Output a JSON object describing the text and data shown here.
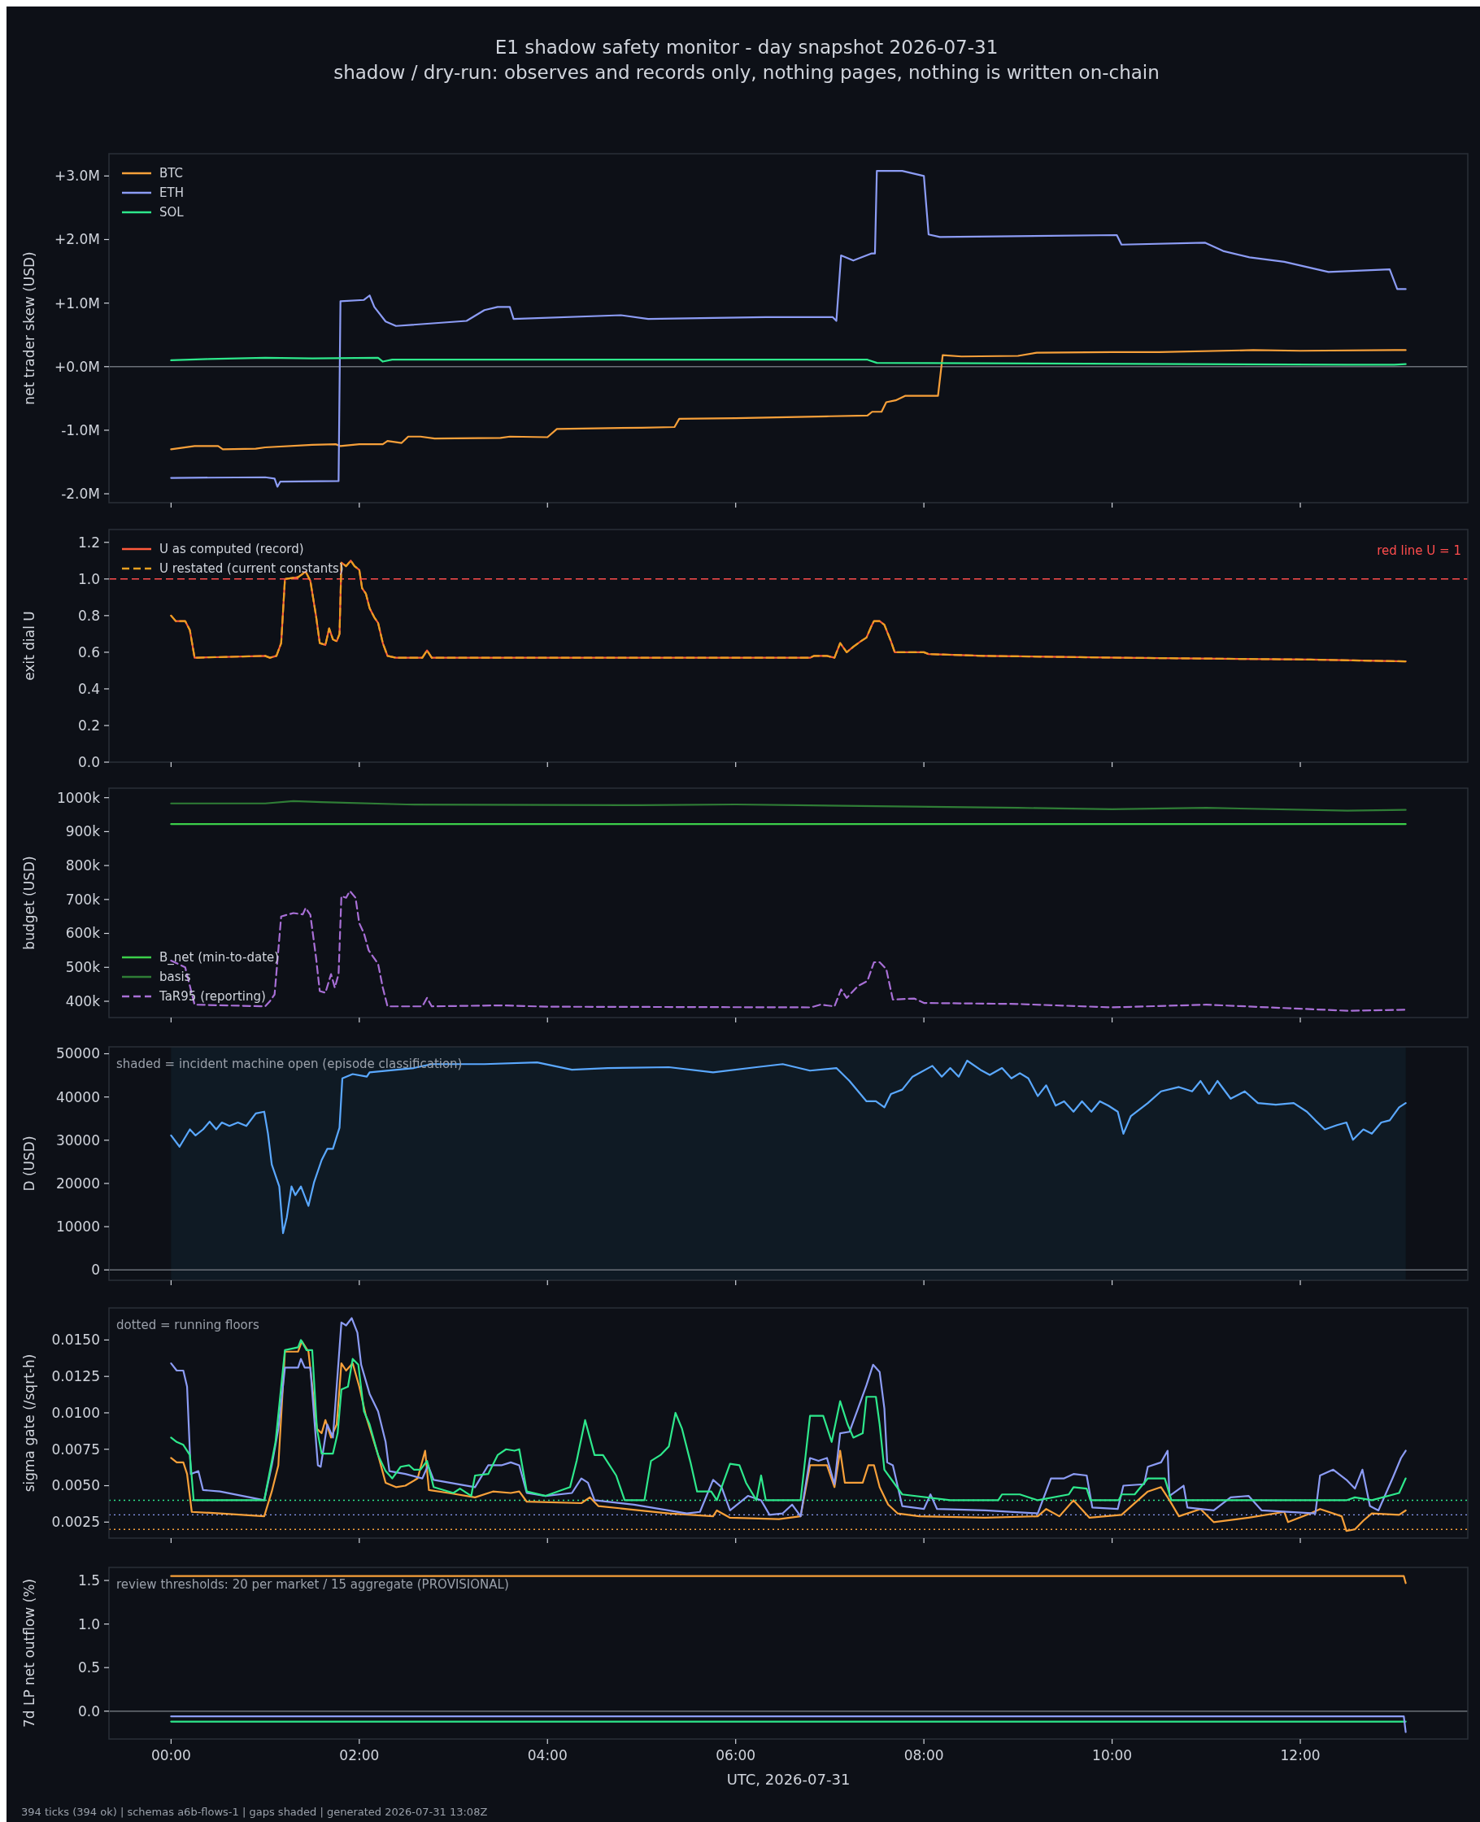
{
  "chart_data": [
    {
      "type": "line",
      "title": "E1 shadow safety monitor - day snapshot 2026-07-31",
      "subtitle": "shadow / dry-run: observes and records only, nothing pages, nothing is written on-chain",
      "ylabel": "net trader skew (USD)",
      "xlim": [
        -0.66,
        13.78
      ],
      "ylim": [
        -2.14,
        3.35
      ],
      "xticks": [
        {
          "value": 0,
          "label": null
        },
        {
          "value": 2,
          "label": null
        },
        {
          "value": 4,
          "label": null
        },
        {
          "value": 6,
          "label": null
        },
        {
          "value": 8,
          "label": null
        },
        {
          "value": 10,
          "label": null
        },
        {
          "value": 12,
          "label": null
        }
      ],
      "yticks": [
        {
          "value": -2,
          "label": "-2.0M"
        },
        {
          "value": -1,
          "label": "-1.0M"
        },
        {
          "value": 0,
          "label": "+0.0M"
        },
        {
          "value": 1,
          "label": "+1.0M"
        },
        {
          "value": 2,
          "label": "+2.0M"
        },
        {
          "value": 3,
          "label": "+3.0M"
        }
      ],
      "tick_labels": "y",
      "legend": "top left",
      "ref_lines": [
        {
          "axis": "y",
          "value": 0,
          "color": "#6b7078"
        }
      ],
      "series": [
        {
          "name": "BTC",
          "color": "#f7a03a",
          "x": [
            0,
            0.25,
            0.5,
            0.55,
            0.9,
            1.0,
            1.5,
            1.75,
            1.8,
            2.0,
            2.25,
            2.3,
            2.45,
            2.52,
            2.65,
            2.8,
            3.5,
            3.6,
            4.0,
            4.1,
            5.0,
            5.35,
            5.4,
            6.0,
            7.0,
            7.4,
            7.45,
            7.55,
            7.6,
            7.7,
            7.8,
            8.15,
            8.2,
            8.4,
            9.0,
            9.2,
            10.0,
            10.5,
            11.5,
            12.0,
            13.0,
            13.12
          ],
          "values": [
            -1.3,
            -1.25,
            -1.25,
            -1.3,
            -1.29,
            -1.27,
            -1.23,
            -1.22,
            -1.25,
            -1.22,
            -1.22,
            -1.17,
            -1.2,
            -1.1,
            -1.1,
            -1.13,
            -1.12,
            -1.1,
            -1.11,
            -0.98,
            -0.96,
            -0.95,
            -0.82,
            -0.81,
            -0.78,
            -0.77,
            -0.71,
            -0.71,
            -0.56,
            -0.53,
            -0.46,
            -0.46,
            0.18,
            0.16,
            0.17,
            0.22,
            0.23,
            0.23,
            0.26,
            0.25,
            0.26,
            0.26
          ]
        },
        {
          "name": "ETH",
          "color": "#8c9cf5",
          "x": [
            0,
            1.0,
            1.1,
            1.13,
            1.16,
            1.78,
            1.8,
            2.05,
            2.11,
            2.16,
            2.28,
            2.39,
            3.14,
            3.33,
            3.47,
            3.6,
            3.64,
            4.78,
            5.07,
            6.32,
            7.03,
            7.07,
            7.12,
            7.25,
            7.44,
            7.48,
            7.5,
            7.77,
            8.0,
            8.05,
            8.17,
            10.05,
            10.1,
            10.99,
            11.18,
            11.46,
            11.83,
            12.3,
            12.95,
            13.03,
            13.12
          ],
          "values": [
            -1.75,
            -1.74,
            -1.76,
            -1.89,
            -1.81,
            -1.8,
            1.03,
            1.05,
            1.12,
            0.94,
            0.71,
            0.64,
            0.72,
            0.89,
            0.94,
            0.94,
            0.75,
            0.81,
            0.75,
            0.78,
            0.78,
            0.72,
            1.75,
            1.67,
            1.78,
            1.78,
            3.08,
            3.08,
            3.0,
            2.08,
            2.04,
            2.07,
            1.92,
            1.95,
            1.82,
            1.72,
            1.65,
            1.49,
            1.53,
            1.22,
            1.22
          ]
        },
        {
          "name": "SOL",
          "color": "#2ee88c",
          "x": [
            0,
            0.4,
            1.0,
            1.5,
            2.2,
            2.25,
            2.35,
            7.4,
            7.5,
            9.2,
            12.5,
            13.0,
            13.12
          ],
          "values": [
            0.1,
            0.12,
            0.14,
            0.13,
            0.14,
            0.08,
            0.11,
            0.11,
            0.06,
            0.05,
            0.03,
            0.03,
            0.04
          ]
        }
      ]
    },
    {
      "type": "line",
      "ylabel": "exit dial U",
      "xlim": [
        -0.66,
        13.78
      ],
      "ylim": [
        0,
        1.27
      ],
      "xticks": [
        {
          "value": 0,
          "label": null
        },
        {
          "value": 2,
          "label": null
        },
        {
          "value": 4,
          "label": null
        },
        {
          "value": 6,
          "label": null
        },
        {
          "value": 8,
          "label": null
        },
        {
          "value": 10,
          "label": null
        },
        {
          "value": 12,
          "label": null
        }
      ],
      "yticks": [
        {
          "value": 0,
          "label": "0.0"
        },
        {
          "value": 0.2,
          "label": "0.2"
        },
        {
          "value": 0.4,
          "label": "0.4"
        },
        {
          "value": 0.6,
          "label": "0.6"
        },
        {
          "value": 0.8,
          "label": "0.8"
        },
        {
          "value": 1,
          "label": "1.0"
        },
        {
          "value": 1.2,
          "label": "1.2"
        }
      ],
      "tick_labels": "y",
      "legend": "top left",
      "ref_lines": [
        {
          "axis": "y",
          "value": 1,
          "label": "red line U = 1",
          "color": "#ff4d4d",
          "line_style": "dashed"
        }
      ],
      "x": [
        0,
        0.05,
        0.15,
        0.2,
        0.25,
        1.0,
        1.05,
        1.12,
        1.17,
        1.21,
        1.35,
        1.43,
        1.48,
        1.54,
        1.58,
        1.64,
        1.68,
        1.72,
        1.76,
        1.79,
        1.81,
        1.86,
        1.91,
        1.95,
        2.0,
        2.03,
        2.07,
        2.11,
        2.16,
        2.2,
        2.25,
        2.3,
        2.39,
        2.67,
        2.72,
        2.77,
        3.98,
        6.79,
        6.83,
        6.97,
        7.05,
        7.11,
        7.18,
        7.25,
        7.33,
        7.39,
        7.44,
        7.47,
        7.53,
        7.58,
        7.65,
        7.69,
        8.0,
        8.05,
        8.65,
        10.1,
        12.11,
        13.12
      ],
      "series": [
        {
          "name": "U as computed (record)",
          "color": "#ff5a3c",
          "values": [
            0.8,
            0.77,
            0.77,
            0.72,
            0.57,
            0.58,
            0.57,
            0.58,
            0.65,
            1.0,
            1.01,
            1.04,
            0.99,
            0.8,
            0.65,
            0.64,
            0.73,
            0.67,
            0.66,
            0.7,
            1.09,
            1.07,
            1.1,
            1.07,
            1.05,
            0.95,
            0.92,
            0.84,
            0.79,
            0.76,
            0.65,
            0.58,
            0.57,
            0.57,
            0.61,
            0.57,
            0.57,
            0.57,
            0.58,
            0.58,
            0.57,
            0.65,
            0.6,
            0.63,
            0.66,
            0.68,
            0.74,
            0.77,
            0.77,
            0.75,
            0.66,
            0.6,
            0.6,
            0.59,
            0.58,
            0.57,
            0.56,
            0.55
          ]
        },
        {
          "name": "U restated (current constants)",
          "color": "#e8a020",
          "line_style": "dashed",
          "values": [
            0.8,
            0.77,
            0.77,
            0.72,
            0.57,
            0.58,
            0.57,
            0.58,
            0.65,
            1.0,
            1.01,
            1.04,
            0.99,
            0.8,
            0.65,
            0.64,
            0.73,
            0.67,
            0.66,
            0.7,
            1.09,
            1.07,
            1.1,
            1.07,
            1.05,
            0.95,
            0.92,
            0.84,
            0.79,
            0.76,
            0.65,
            0.58,
            0.57,
            0.57,
            0.61,
            0.57,
            0.57,
            0.57,
            0.58,
            0.58,
            0.57,
            0.65,
            0.6,
            0.63,
            0.66,
            0.68,
            0.74,
            0.77,
            0.77,
            0.75,
            0.66,
            0.6,
            0.6,
            0.59,
            0.58,
            0.57,
            0.56,
            0.55
          ]
        }
      ]
    },
    {
      "type": "line",
      "ylabel": "budget (USD)",
      "xlim": [
        -0.66,
        13.78
      ],
      "ylim": [
        352,
        1028
      ],
      "xticks": [
        {
          "value": 0,
          "label": null
        },
        {
          "value": 2,
          "label": null
        },
        {
          "value": 4,
          "label": null
        },
        {
          "value": 6,
          "label": null
        },
        {
          "value": 8,
          "label": null
        },
        {
          "value": 10,
          "label": null
        },
        {
          "value": 12,
          "label": null
        }
      ],
      "yticks": [
        {
          "value": 400,
          "label": "400k"
        },
        {
          "value": 500,
          "label": "500k"
        },
        {
          "value": 600,
          "label": "600k"
        },
        {
          "value": 700,
          "label": "700k"
        },
        {
          "value": 800,
          "label": "800k"
        },
        {
          "value": 900,
          "label": "900k"
        },
        {
          "value": 1000,
          "label": "1000k"
        }
      ],
      "tick_labels": "y",
      "legend": "bottom left",
      "series": [
        {
          "name": "B_net (min-to-date)",
          "color": "#3ccf4a",
          "x": [
            0,
            13.12
          ],
          "values": [
            922,
            922
          ]
        },
        {
          "name": "basis",
          "color": "#2f7d36",
          "x": [
            0,
            1.0,
            1.3,
            1.6,
            2.5,
            5.0,
            6.0,
            7.5,
            9.0,
            10.0,
            11.0,
            12.5,
            13.12
          ],
          "values": [
            983,
            983,
            990,
            987,
            980,
            978,
            980,
            975,
            970,
            966,
            970,
            962,
            964
          ]
        },
        {
          "name": "TaR95 (reporting)",
          "color": "#a86fd6",
          "line_style": "dashed",
          "x": [
            0,
            0.15,
            0.25,
            1.0,
            1.05,
            1.1,
            1.17,
            1.3,
            1.4,
            1.43,
            1.48,
            1.54,
            1.58,
            1.64,
            1.7,
            1.74,
            1.78,
            1.81,
            1.86,
            1.9,
            1.96,
            2.0,
            2.05,
            2.1,
            2.2,
            2.25,
            2.3,
            2.67,
            2.72,
            2.77,
            3.5,
            4.0,
            6.8,
            6.9,
            7.05,
            7.12,
            7.18,
            7.3,
            7.4,
            7.47,
            7.53,
            7.6,
            7.67,
            7.9,
            8.0,
            9.0,
            10.0,
            11.0,
            12.0,
            12.5,
            13.12
          ],
          "values": [
            520,
            500,
            390,
            385,
            400,
            420,
            650,
            660,
            656,
            675,
            655,
            530,
            430,
            425,
            480,
            440,
            480,
            710,
            705,
            725,
            705,
            630,
            600,
            550,
            510,
            440,
            385,
            385,
            410,
            385,
            388,
            384,
            382,
            390,
            385,
            435,
            410,
            445,
            460,
            515,
            515,
            495,
            405,
            408,
            395,
            392,
            382,
            390,
            378,
            372,
            375
          ]
        }
      ]
    },
    {
      "type": "line",
      "ylabel": "D (USD)",
      "xlim": [
        -0.66,
        13.78
      ],
      "ylim": [
        -2400,
        51600
      ],
      "xticks": [
        {
          "value": 0,
          "label": null
        },
        {
          "value": 2,
          "label": null
        },
        {
          "value": 4,
          "label": null
        },
        {
          "value": 6,
          "label": null
        },
        {
          "value": 8,
          "label": null
        },
        {
          "value": 10,
          "label": null
        },
        {
          "value": 12,
          "label": null
        }
      ],
      "yticks": [
        0,
        10000,
        20000,
        30000,
        40000,
        50000
      ],
      "tick_labels": "y",
      "annotations": [
        "shaded = incident machine open (episode classification)"
      ],
      "bands": [
        {
          "axis": "x",
          "from": 0,
          "to": 13.12,
          "color": "#0f1a24"
        }
      ],
      "ref_lines": [
        {
          "axis": "y",
          "value": 0,
          "color": "#6b7078"
        }
      ],
      "series": [
        {
          "color": "#5aa8ff",
          "x": [
            0,
            0.09,
            0.2,
            0.26,
            0.34,
            0.41,
            0.48,
            0.54,
            0.62,
            0.71,
            0.8,
            0.9,
            0.99,
            1.03,
            1.07,
            1.15,
            1.19,
            1.23,
            1.28,
            1.32,
            1.38,
            1.46,
            1.52,
            1.6,
            1.66,
            1.72,
            1.79,
            1.82,
            1.93,
            2.08,
            2.11,
            2.58,
            2.77,
            3.33,
            3.89,
            4.26,
            4.64,
            5.29,
            5.76,
            6.22,
            6.5,
            6.79,
            7.07,
            7.21,
            7.39,
            7.49,
            7.58,
            7.65,
            7.77,
            7.88,
            8.09,
            8.19,
            8.28,
            8.37,
            8.46,
            8.6,
            8.7,
            8.83,
            8.93,
            9.02,
            9.11,
            9.21,
            9.3,
            9.4,
            9.49,
            9.59,
            9.68,
            9.78,
            9.87,
            9.96,
            10.06,
            10.12,
            10.2,
            10.38,
            10.52,
            10.71,
            10.85,
            10.94,
            11.03,
            11.12,
            11.26,
            11.41,
            11.55,
            11.74,
            11.93,
            12.07,
            12.16,
            12.26,
            12.39,
            12.49,
            12.56,
            12.67,
            12.76,
            12.86,
            12.95,
            13.05,
            13.12
          ],
          "values": [
            31100,
            28500,
            32500,
            31100,
            32500,
            34300,
            32500,
            34100,
            33300,
            34100,
            33300,
            36200,
            36600,
            31500,
            24400,
            19300,
            8500,
            12200,
            19300,
            17300,
            19300,
            14800,
            20300,
            25400,
            28000,
            28000,
            32900,
            44300,
            45300,
            44700,
            45700,
            46700,
            47600,
            47600,
            48000,
            46300,
            46700,
            46900,
            45700,
            46900,
            47600,
            46100,
            46700,
            43700,
            39000,
            39000,
            37600,
            40700,
            41700,
            44700,
            47200,
            44700,
            46700,
            44700,
            48400,
            46300,
            45100,
            46700,
            44300,
            45500,
            44300,
            40200,
            42700,
            38000,
            39000,
            36600,
            39000,
            36600,
            39000,
            38000,
            36600,
            31500,
            35600,
            38600,
            41300,
            42300,
            41300,
            43700,
            40700,
            43700,
            39600,
            41300,
            38600,
            38200,
            38600,
            36600,
            34600,
            32500,
            33500,
            34100,
            30100,
            32500,
            31500,
            34100,
            34600,
            37600,
            38600
          ]
        }
      ]
    },
    {
      "type": "line",
      "ylabel": "sigma gate (/sqrt-h)",
      "xlim": [
        -0.66,
        13.78
      ],
      "ylim": [
        0.0014,
        0.0172
      ],
      "xticks": [
        {
          "value": 0,
          "label": null
        },
        {
          "value": 2,
          "label": null
        },
        {
          "value": 4,
          "label": null
        },
        {
          "value": 6,
          "label": null
        },
        {
          "value": 8,
          "label": null
        },
        {
          "value": 10,
          "label": null
        },
        {
          "value": 12,
          "label": null
        }
      ],
      "yticks": [
        {
          "value": 0.0025,
          "label": "0.0025"
        },
        {
          "value": 0.005,
          "label": "0.0050"
        },
        {
          "value": 0.0075,
          "label": "0.0075"
        },
        {
          "value": 0.01,
          "label": "0.0100"
        },
        {
          "value": 0.0125,
          "label": "0.0125"
        },
        {
          "value": 0.015,
          "label": "0.0150"
        }
      ],
      "tick_labels": "y",
      "annotations": [
        "dotted = running floors"
      ],
      "ref_lines": [
        {
          "axis": "y",
          "value": 0.004,
          "color": "#2ee88c",
          "line_style": "dotted"
        },
        {
          "axis": "y",
          "value": 0.003,
          "color": "#8c9cf5",
          "line_style": "dotted"
        },
        {
          "axis": "y",
          "value": 0.002,
          "color": "#f7a03a",
          "line_style": "dotted"
        }
      ],
      "series": [
        {
          "color": "#f7a03a",
          "x": [
            0,
            0.06,
            0.13,
            0.17,
            0.22,
            0.52,
            0.99,
            1.07,
            1.14,
            1.21,
            1.35,
            1.39,
            1.46,
            1.55,
            1.6,
            1.64,
            1.7,
            1.76,
            1.81,
            1.86,
            1.93,
            2.0,
            2.07,
            2.2,
            2.28,
            2.39,
            2.49,
            2.62,
            2.7,
            2.74,
            2.95,
            3.23,
            3.42,
            3.61,
            3.7,
            3.78,
            4.36,
            4.45,
            4.54,
            5.29,
            5.76,
            5.8,
            5.94,
            6.46,
            6.69,
            6.79,
            6.97,
            7.05,
            7.11,
            7.16,
            7.35,
            7.41,
            7.47,
            7.53,
            7.62,
            7.72,
            7.95,
            8.65,
            9.21,
            9.3,
            9.44,
            9.59,
            9.76,
            10.1,
            10.38,
            10.52,
            10.61,
            10.71,
            10.94,
            11.08,
            11.45,
            11.83,
            11.87,
            12.11,
            12.21,
            12.44,
            12.49,
            12.58,
            12.67,
            12.76,
            13.05,
            13.12
          ],
          "values": [
            0.0069,
            0.0066,
            0.0066,
            0.0058,
            0.0032,
            0.0031,
            0.0029,
            0.0046,
            0.0064,
            0.0142,
            0.0142,
            0.0149,
            0.0142,
            0.0089,
            0.0086,
            0.0095,
            0.0083,
            0.0092,
            0.0134,
            0.0129,
            0.0134,
            0.0118,
            0.0098,
            0.0071,
            0.0052,
            0.0049,
            0.005,
            0.0055,
            0.0074,
            0.0047,
            0.0045,
            0.0042,
            0.0046,
            0.0045,
            0.0046,
            0.0039,
            0.0038,
            0.0042,
            0.0036,
            0.0031,
            0.0029,
            0.0033,
            0.0028,
            0.0027,
            0.0029,
            0.0064,
            0.0064,
            0.0049,
            0.0074,
            0.0052,
            0.0052,
            0.0064,
            0.0064,
            0.0049,
            0.0037,
            0.0031,
            0.0029,
            0.0028,
            0.0029,
            0.0034,
            0.0029,
            0.004,
            0.0028,
            0.003,
            0.0046,
            0.0049,
            0.004,
            0.0029,
            0.0034,
            0.0025,
            0.0028,
            0.0032,
            0.0025,
            0.0031,
            0.0034,
            0.0029,
            0.0019,
            0.002,
            0.0026,
            0.0031,
            0.003,
            0.0033
          ]
        },
        {
          "color": "#8c9cf5",
          "x": [
            0,
            0.06,
            0.13,
            0.17,
            0.21,
            0.29,
            0.34,
            0.52,
            0.99,
            1.07,
            1.14,
            1.21,
            1.35,
            1.38,
            1.42,
            1.48,
            1.56,
            1.59,
            1.66,
            1.72,
            1.81,
            1.86,
            1.92,
            1.98,
            2.02,
            2.11,
            2.2,
            2.28,
            2.32,
            2.49,
            2.67,
            2.73,
            2.79,
            3.23,
            3.37,
            3.51,
            3.61,
            3.7,
            3.78,
            3.98,
            4.26,
            4.36,
            4.43,
            4.5,
            4.92,
            5.48,
            5.62,
            5.76,
            5.85,
            5.94,
            6.13,
            6.27,
            6.36,
            6.5,
            6.6,
            6.69,
            6.79,
            6.88,
            6.97,
            7.05,
            7.11,
            7.21,
            7.3,
            7.39,
            7.46,
            7.53,
            7.58,
            7.61,
            7.67,
            7.77,
            8.0,
            8.07,
            8.14,
            8.65,
            9.21,
            9.35,
            9.49,
            9.59,
            9.73,
            9.79,
            10.06,
            10.12,
            10.34,
            10.38,
            10.52,
            10.59,
            10.61,
            10.76,
            10.8,
            11.08,
            11.26,
            11.45,
            11.59,
            12.16,
            12.21,
            12.35,
            12.49,
            12.58,
            12.66,
            12.74,
            12.83,
            12.98,
            13.07,
            13.12
          ],
          "values": [
            0.0134,
            0.0129,
            0.0129,
            0.0118,
            0.0058,
            0.006,
            0.0047,
            0.0046,
            0.004,
            0.0064,
            0.0089,
            0.0131,
            0.0131,
            0.0137,
            0.0131,
            0.0131,
            0.0064,
            0.0063,
            0.0092,
            0.0083,
            0.0162,
            0.016,
            0.0165,
            0.0155,
            0.0133,
            0.0113,
            0.0101,
            0.008,
            0.006,
            0.0058,
            0.0055,
            0.0064,
            0.0054,
            0.0049,
            0.0064,
            0.0064,
            0.0066,
            0.0064,
            0.0045,
            0.0043,
            0.0045,
            0.0055,
            0.0052,
            0.004,
            0.0037,
            0.0031,
            0.0032,
            0.0054,
            0.0049,
            0.0033,
            0.0043,
            0.004,
            0.003,
            0.0031,
            0.0037,
            0.0029,
            0.0069,
            0.0067,
            0.0069,
            0.0051,
            0.0086,
            0.0087,
            0.0103,
            0.0119,
            0.0133,
            0.0128,
            0.0103,
            0.0066,
            0.0064,
            0.0036,
            0.0034,
            0.0044,
            0.0034,
            0.0033,
            0.0031,
            0.0055,
            0.0055,
            0.0058,
            0.0057,
            0.0035,
            0.0034,
            0.005,
            0.0051,
            0.0063,
            0.0066,
            0.0074,
            0.0043,
            0.005,
            0.0035,
            0.0033,
            0.0042,
            0.0043,
            0.0033,
            0.0031,
            0.0057,
            0.0061,
            0.0054,
            0.0048,
            0.0061,
            0.0036,
            0.0033,
            0.0055,
            0.0069,
            0.0074
          ]
        },
        {
          "color": "#2ee88c",
          "x": [
            0,
            0.06,
            0.13,
            0.2,
            0.24,
            0.99,
            1.11,
            1.21,
            1.35,
            1.38,
            1.44,
            1.5,
            1.55,
            1.6,
            1.72,
            1.77,
            1.81,
            1.88,
            1.93,
            1.99,
            2.05,
            2.11,
            2.2,
            2.28,
            2.35,
            2.44,
            2.53,
            2.58,
            2.65,
            2.72,
            2.79,
            3.0,
            3.07,
            3.19,
            3.23,
            3.37,
            3.47,
            3.56,
            3.65,
            3.7,
            3.78,
            3.98,
            4.24,
            4.31,
            4.4,
            4.5,
            4.59,
            4.73,
            4.82,
            5.03,
            5.1,
            5.2,
            5.29,
            5.36,
            5.43,
            5.52,
            5.59,
            5.74,
            5.8,
            5.94,
            6.04,
            6.11,
            6.22,
            6.27,
            6.32,
            6.69,
            6.79,
            6.93,
            7.02,
            7.11,
            7.19,
            7.25,
            7.35,
            7.39,
            7.49,
            7.53,
            7.58,
            7.77,
            8.28,
            8.79,
            8.83,
            9.02,
            9.21,
            9.54,
            9.59,
            9.73,
            9.77,
            10.07,
            10.1,
            10.24,
            10.38,
            10.56,
            10.63,
            12.49,
            12.58,
            12.76,
            13.05,
            13.12
          ],
          "values": [
            0.0083,
            0.008,
            0.0078,
            0.0071,
            0.004,
            0.004,
            0.008,
            0.0143,
            0.0145,
            0.015,
            0.0143,
            0.0143,
            0.0089,
            0.0072,
            0.0072,
            0.0086,
            0.0116,
            0.0118,
            0.0137,
            0.0133,
            0.0101,
            0.0092,
            0.0071,
            0.006,
            0.0055,
            0.0063,
            0.0064,
            0.0061,
            0.0061,
            0.0067,
            0.0049,
            0.0045,
            0.0048,
            0.0043,
            0.0057,
            0.0058,
            0.0071,
            0.0075,
            0.0074,
            0.0075,
            0.0046,
            0.0043,
            0.0049,
            0.0067,
            0.0095,
            0.0071,
            0.0071,
            0.0057,
            0.004,
            0.004,
            0.0067,
            0.0071,
            0.0077,
            0.01,
            0.0089,
            0.0066,
            0.0046,
            0.0046,
            0.004,
            0.0065,
            0.0064,
            0.0052,
            0.004,
            0.0057,
            0.004,
            0.004,
            0.0098,
            0.0098,
            0.008,
            0.0108,
            0.0092,
            0.0083,
            0.0086,
            0.0111,
            0.0111,
            0.0092,
            0.0061,
            0.0044,
            0.004,
            0.004,
            0.0044,
            0.0044,
            0.004,
            0.0044,
            0.0049,
            0.0048,
            0.004,
            0.004,
            0.0044,
            0.0044,
            0.0055,
            0.0055,
            0.004,
            0.004,
            0.0042,
            0.004,
            0.0045,
            0.0055
          ]
        }
      ]
    },
    {
      "type": "line",
      "ylabel": "7d LP net outflow (%)",
      "xlabel": "UTC, 2026-07-31",
      "xlim": [
        -0.66,
        13.78
      ],
      "ylim": [
        -0.32,
        1.65
      ],
      "xticks": [
        {
          "value": 0,
          "label": "00:00"
        },
        {
          "value": 2,
          "label": "02:00"
        },
        {
          "value": 4,
          "label": "04:00"
        },
        {
          "value": 6,
          "label": "06:00"
        },
        {
          "value": 8,
          "label": "08:00"
        },
        {
          "value": 10,
          "label": "10:00"
        },
        {
          "value": 12,
          "label": "12:00"
        }
      ],
      "yticks": [
        {
          "value": 0,
          "label": "0.0"
        },
        {
          "value": 0.5,
          "label": "0.5"
        },
        {
          "value": 1,
          "label": "1.0"
        },
        {
          "value": 1.5,
          "label": "1.5"
        }
      ],
      "annotations": [
        "review thresholds: 20 per market / 15 aggregate (PROVISIONAL)",
        "394 ticks (394 ok) | schemas a6b-flows-1 | gaps shaded | generated 2026-07-31 13:08Z"
      ],
      "ref_lines": [
        {
          "axis": "y",
          "value": 0,
          "color": "#6b7078"
        }
      ],
      "x": [
        0,
        13.1,
        13.12
      ],
      "series": [
        {
          "color": "#f7a03a",
          "values": [
            1.55,
            1.55,
            1.47
          ]
        },
        {
          "color": "#2ee88c",
          "values": [
            -0.12,
            -0.12,
            -0.12
          ]
        },
        {
          "color": "#8c9cf5",
          "values": [
            -0.06,
            -0.06,
            -0.24
          ]
        }
      ]
    }
  ]
}
